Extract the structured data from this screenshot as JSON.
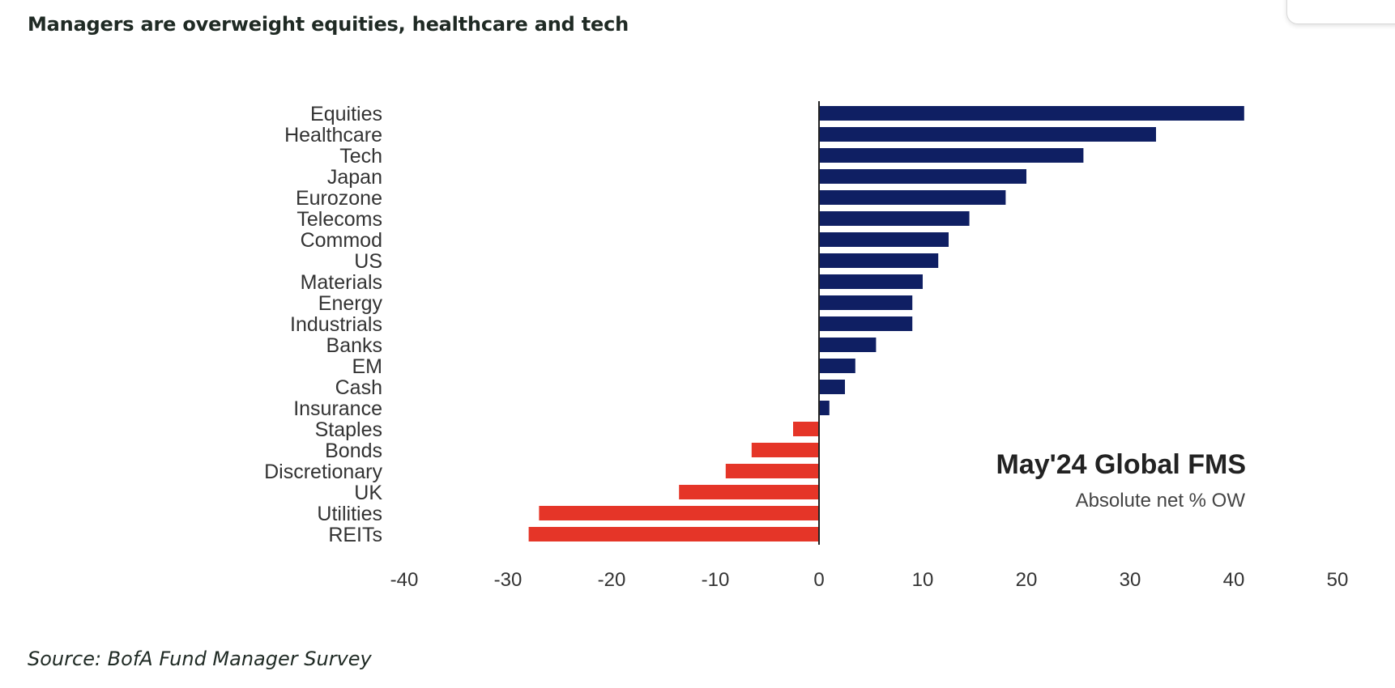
{
  "page": {
    "title": "Managers are overweight equities, healthcare and tech",
    "source": "Source: BofA Fund Manager Survey"
  },
  "colors": {
    "positive": "#0f1f63",
    "negative": "#e53528",
    "axis": "#222222"
  },
  "chart_data": {
    "type": "bar",
    "orientation": "horizontal",
    "categories": [
      "Equities",
      "Healthcare",
      "Tech",
      "Japan",
      "Eurozone",
      "Telecoms",
      "Commod",
      "US",
      "Materials",
      "Energy",
      "Industrials",
      "Banks",
      "EM",
      "Cash",
      "Insurance",
      "Staples",
      "Bonds",
      "Discretionary",
      "UK",
      "Utilities",
      "REITs"
    ],
    "values": [
      41,
      32.5,
      25.5,
      20,
      18,
      14.5,
      12.5,
      11.5,
      10,
      9,
      9,
      5.5,
      3.5,
      2.5,
      1,
      -2.5,
      -6.5,
      -9,
      -13.5,
      -27,
      -28
    ],
    "xlim": [
      -40,
      50
    ],
    "xticks": [
      -40,
      -30,
      -20,
      -10,
      0,
      10,
      20,
      30,
      40,
      50
    ],
    "annotation": {
      "title": "May'24 Global FMS",
      "subtitle": "Absolute net % OW"
    },
    "grid": false,
    "legend": "none"
  }
}
